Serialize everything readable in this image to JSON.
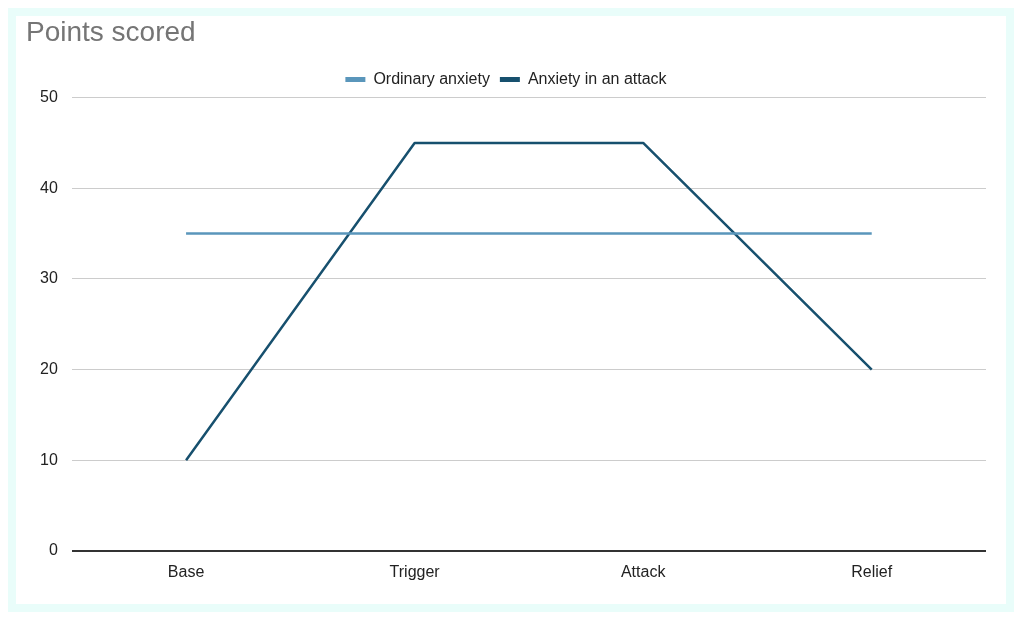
{
  "chart_data": {
    "type": "line",
    "title": "Points scored",
    "categories": [
      "Base",
      "Trigger",
      "Attack",
      "Relief"
    ],
    "series": [
      {
        "name": "Ordinary anxiety",
        "color": "#5a96bb",
        "values": [
          35,
          35,
          35,
          35
        ]
      },
      {
        "name": "Anxiety in an attack",
        "color": "#17506e",
        "values": [
          10,
          45,
          45,
          20
        ]
      }
    ],
    "ylim": [
      0,
      50
    ],
    "yticks": [
      0,
      10,
      20,
      30,
      40,
      50
    ],
    "grid": "y",
    "legend": "top",
    "marker": "none",
    "line_style": "solid"
  }
}
